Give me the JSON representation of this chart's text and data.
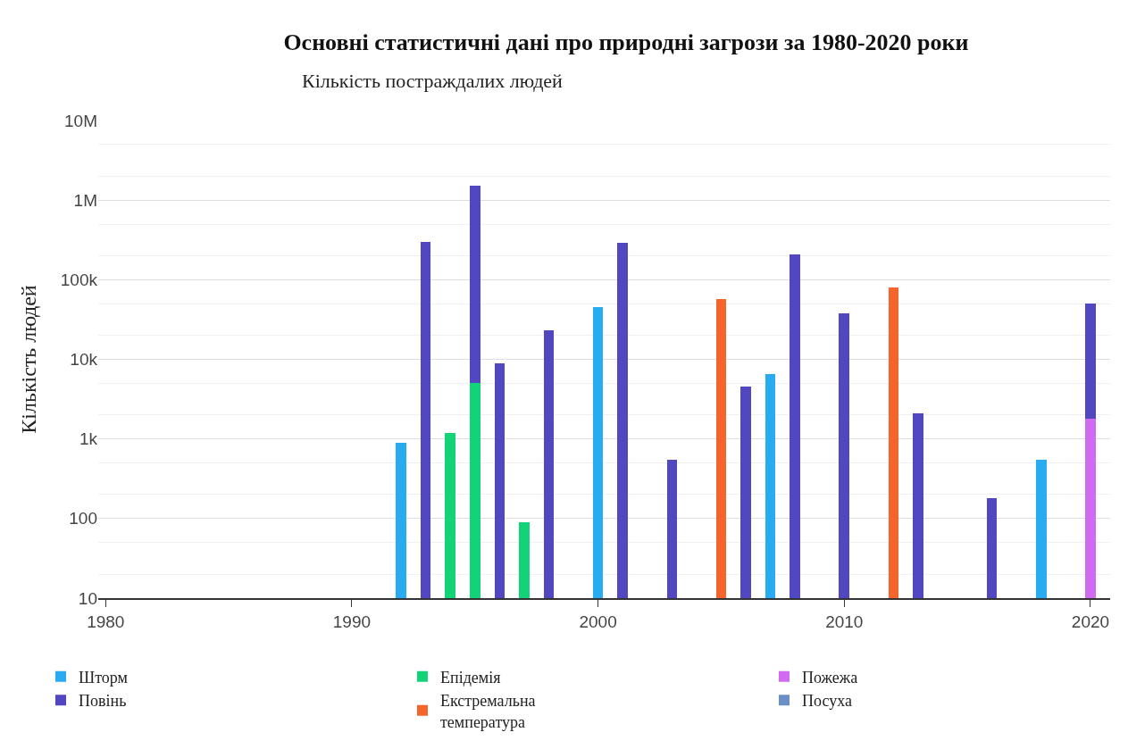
{
  "chart_data": {
    "type": "bar",
    "title": "Основні статистичні дані про природні загрози за 1980-2020 роки",
    "subtitle": "Кількість постраждалих людей",
    "ylabel": "Кількість людей",
    "x": [
      1992,
      1993,
      1994,
      1995,
      1996,
      1997,
      1998,
      2000,
      2001,
      2003,
      2005,
      2006,
      2007,
      2008,
      2010,
      2012,
      2013,
      2016,
      2018,
      2020
    ],
    "stacked": true,
    "log": "y",
    "grid": "y",
    "legend": "bottom",
    "xlim": [
      1979.7,
      2020.8
    ],
    "xticks": [
      1980,
      1990,
      2000,
      2010,
      2020
    ],
    "ylim": [
      10,
      10000000
    ],
    "yticks": [
      10,
      100,
      {
        "value": 1000,
        "label": "1k"
      },
      {
        "value": 10000,
        "label": "10k"
      },
      {
        "value": 100000,
        "label": "100k"
      },
      {
        "value": 1000000,
        "label": "1M"
      },
      {
        "value": 10000000,
        "label": "10M"
      }
    ],
    "series": [
      {
        "name": "Шторм",
        "color": "#29abf2",
        "values": [
          900,
          null,
          null,
          null,
          null,
          null,
          null,
          45000,
          null,
          null,
          null,
          null,
          6500,
          null,
          null,
          null,
          null,
          null,
          550,
          null
        ]
      },
      {
        "name": "Епідемія",
        "color": "#12d377",
        "values": [
          null,
          null,
          1200,
          5000,
          null,
          90,
          null,
          null,
          null,
          null,
          null,
          null,
          null,
          null,
          null,
          null,
          null,
          null,
          null,
          null
        ]
      },
      {
        "name": "Пожежа",
        "color": "#d06af0",
        "values": [
          null,
          null,
          null,
          null,
          null,
          null,
          null,
          null,
          null,
          null,
          null,
          null,
          null,
          null,
          null,
          null,
          null,
          null,
          null,
          1800
        ]
      },
      {
        "name": "Повінь",
        "color": "#5147c0",
        "values": [
          null,
          300000,
          null,
          1500000,
          9000,
          null,
          23000,
          null,
          290000,
          550,
          null,
          4500,
          null,
          210000,
          38000,
          null,
          2100,
          180,
          null,
          49000
        ]
      },
      {
        "name": "Екстремальна температура",
        "color": "#f5652b",
        "values": [
          null,
          null,
          null,
          null,
          null,
          null,
          null,
          null,
          null,
          null,
          57000,
          null,
          null,
          null,
          null,
          80000,
          null,
          null,
          null,
          null
        ]
      },
      {
        "name": "Посуха",
        "color": "#6b8ec4",
        "values": [
          null,
          null,
          null,
          null,
          null,
          null,
          null,
          null,
          null,
          null,
          null,
          null,
          null,
          null,
          null,
          null,
          null,
          null,
          null,
          null
        ]
      }
    ]
  }
}
